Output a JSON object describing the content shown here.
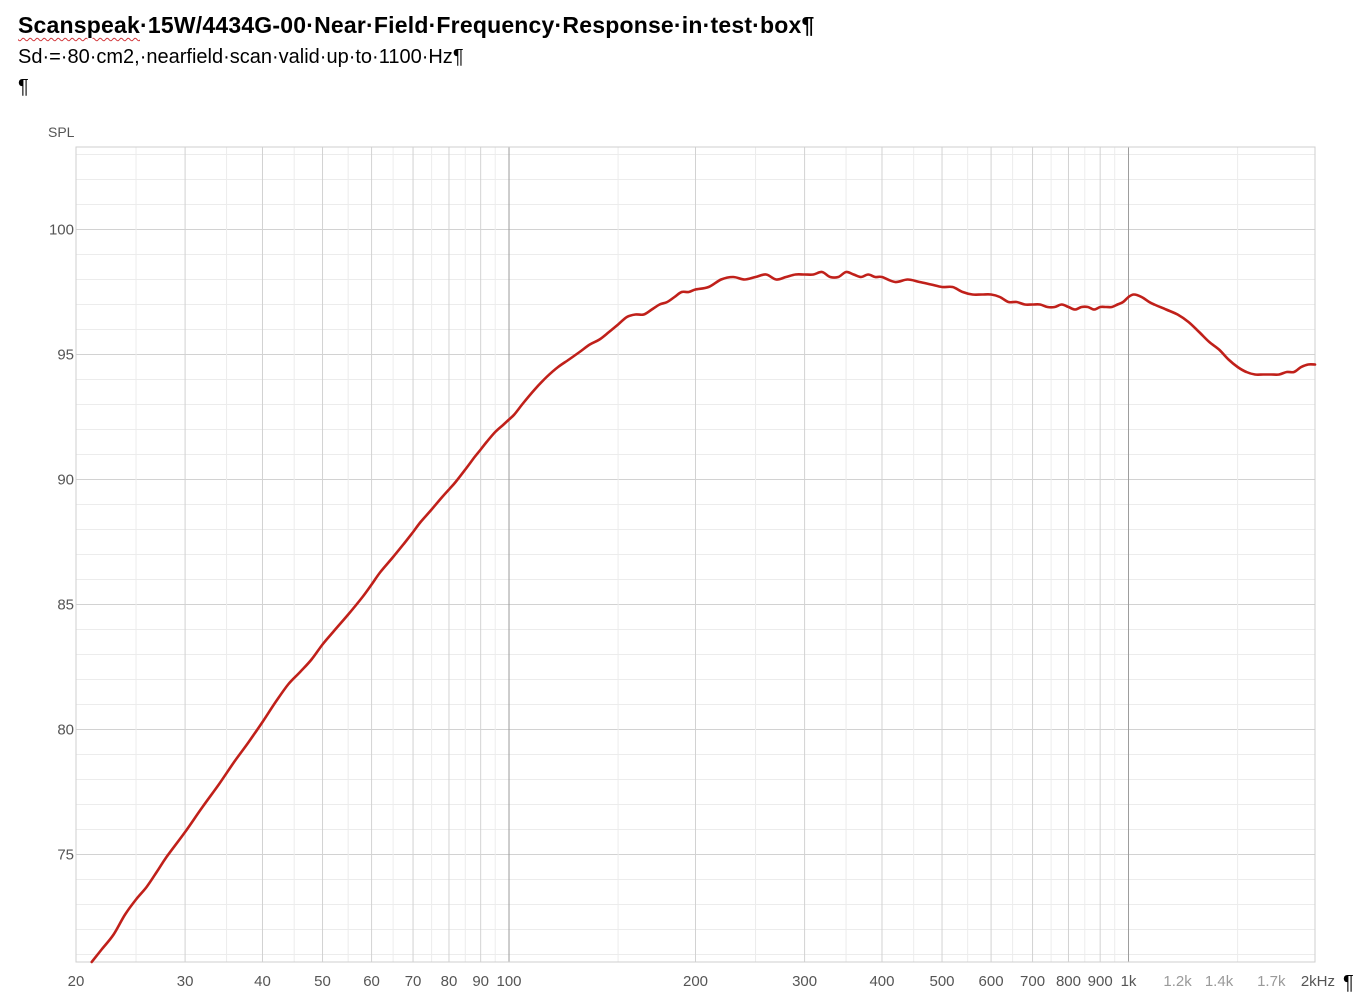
{
  "document": {
    "title": {
      "word1": "Scanspeak",
      "rest": "·15W/4434G-00·Near·Field·Frequency·Response·in·test·box",
      "mark": "¶"
    },
    "subtitle": {
      "text": "Sd·=·80·cm2,·nearfield·scan·valid·up·to·1100·Hz",
      "mark": "¶"
    },
    "empty_paragraph_mark": "¶",
    "trailing_paragraph_mark": "¶"
  },
  "chart_data": {
    "type": "line",
    "title": "",
    "xlabel": "",
    "ylabel": "SPL",
    "x_scale": "log",
    "xlim": [
      20,
      2000
    ],
    "ylim": [
      70.7,
      103.3
    ],
    "grid": true,
    "line_color": "#c0201a",
    "y_ticks": [
      {
        "value": 75,
        "label": "75"
      },
      {
        "value": 80,
        "label": "80"
      },
      {
        "value": 85,
        "label": "85"
      },
      {
        "value": 90,
        "label": "90"
      },
      {
        "value": 95,
        "label": "95"
      },
      {
        "value": 100,
        "label": "100"
      }
    ],
    "x_ticks": [
      {
        "value": 20,
        "label": "20",
        "style": "normal"
      },
      {
        "value": 30,
        "label": "30",
        "style": "normal"
      },
      {
        "value": 40,
        "label": "40",
        "style": "normal"
      },
      {
        "value": 50,
        "label": "50",
        "style": "normal"
      },
      {
        "value": 60,
        "label": "60",
        "style": "normal"
      },
      {
        "value": 70,
        "label": "70",
        "style": "normal"
      },
      {
        "value": 80,
        "label": "80",
        "style": "normal"
      },
      {
        "value": 90,
        "label": "90",
        "style": "normal"
      },
      {
        "value": 100,
        "label": "100",
        "style": "normal"
      },
      {
        "value": 200,
        "label": "200",
        "style": "normal"
      },
      {
        "value": 300,
        "label": "300",
        "style": "normal"
      },
      {
        "value": 400,
        "label": "400",
        "style": "normal"
      },
      {
        "value": 500,
        "label": "500",
        "style": "normal"
      },
      {
        "value": 600,
        "label": "600",
        "style": "normal"
      },
      {
        "value": 700,
        "label": "700",
        "style": "normal"
      },
      {
        "value": 800,
        "label": "800",
        "style": "normal"
      },
      {
        "value": 900,
        "label": "900",
        "style": "normal"
      },
      {
        "value": 1000,
        "label": "1k",
        "style": "normal"
      },
      {
        "value": 1200,
        "label": "1.2k",
        "style": "light"
      },
      {
        "value": 1400,
        "label": "1.4k",
        "style": "light"
      },
      {
        "value": 1700,
        "label": "1.7k",
        "style": "light"
      },
      {
        "value": 2000,
        "label": "2kHz",
        "style": "normal"
      }
    ],
    "series": [
      {
        "x": [
          21.2,
          22,
          23,
          24,
          25,
          26,
          27,
          28,
          30,
          32,
          34,
          36,
          38,
          40,
          42,
          44,
          46,
          48,
          50,
          52,
          55,
          58,
          60,
          62,
          65,
          68,
          70,
          72,
          75,
          78,
          80,
          82,
          85,
          88,
          90,
          92,
          95,
          98,
          100,
          102,
          105,
          110,
          115,
          120,
          125,
          130,
          135,
          140,
          145,
          150,
          155,
          160,
          165,
          170,
          175,
          180,
          185,
          190,
          195,
          200,
          210,
          220,
          230,
          240,
          250,
          260,
          270,
          280,
          290,
          300,
          310,
          320,
          330,
          340,
          350,
          360,
          370,
          380,
          390,
          400,
          420,
          440,
          460,
          480,
          500,
          520,
          540,
          560,
          580,
          600,
          620,
          640,
          660,
          680,
          700,
          720,
          740,
          760,
          780,
          800,
          820,
          840,
          860,
          880,
          900,
          920,
          940,
          960,
          980,
          1000,
          1020,
          1050,
          1080,
          1100,
          1150,
          1200,
          1250,
          1300,
          1350,
          1400,
          1450,
          1500,
          1550,
          1600,
          1650,
          1700,
          1750,
          1800,
          1850,
          1900,
          1950,
          2000
        ],
        "y": [
          70.7,
          71.2,
          71.8,
          72.6,
          73.2,
          73.7,
          74.3,
          74.9,
          75.9,
          76.9,
          77.8,
          78.7,
          79.5,
          80.3,
          81.1,
          81.8,
          82.3,
          82.8,
          83.4,
          83.9,
          84.6,
          85.3,
          85.8,
          86.3,
          86.9,
          87.5,
          87.9,
          88.3,
          88.8,
          89.3,
          89.6,
          89.9,
          90.4,
          90.9,
          91.2,
          91.5,
          91.9,
          92.2,
          92.4,
          92.6,
          93.0,
          93.6,
          94.1,
          94.5,
          94.8,
          95.1,
          95.4,
          95.6,
          95.9,
          96.2,
          96.5,
          96.6,
          96.6,
          96.8,
          97.0,
          97.1,
          97.3,
          97.5,
          97.5,
          97.6,
          97.7,
          98.0,
          98.1,
          98.0,
          98.1,
          98.2,
          98.0,
          98.1,
          98.2,
          98.2,
          98.2,
          98.3,
          98.1,
          98.1,
          98.3,
          98.2,
          98.1,
          98.2,
          98.1,
          98.1,
          97.9,
          98.0,
          97.9,
          97.8,
          97.7,
          97.7,
          97.5,
          97.4,
          97.4,
          97.4,
          97.3,
          97.1,
          97.1,
          97.0,
          97.0,
          97.0,
          96.9,
          96.9,
          97.0,
          96.9,
          96.8,
          96.9,
          96.9,
          96.8,
          96.9,
          96.9,
          96.9,
          97.0,
          97.1,
          97.3,
          97.4,
          97.3,
          97.1,
          97.0,
          96.8,
          96.6,
          96.3,
          95.9,
          95.5,
          95.2,
          94.8,
          94.5,
          94.3,
          94.2,
          94.2,
          94.2,
          94.2,
          94.3,
          94.3,
          94.5,
          94.6,
          94.6
        ]
      }
    ]
  }
}
